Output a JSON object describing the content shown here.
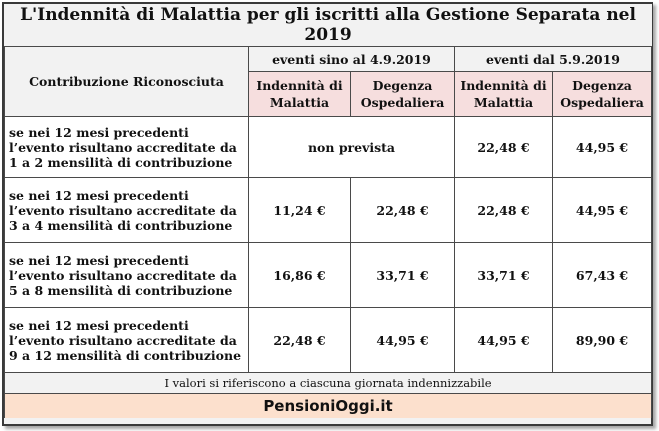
{
  "title": "L'Indennità di Malattia per gli iscritti alla Gestione Separata nel 2019",
  "header": {
    "row_label": "Contribuzione Riconosciuta",
    "period_before": "eventi sino al 4.9.2019",
    "period_after": "eventi dal 5.9.2019",
    "col_malattia": "Indennità di Malattia",
    "col_degenza": "Degenza Ospedaliera"
  },
  "rows": [
    {
      "label": "se nei 12 mesi precedenti l’evento risultano accreditate da  1  a 2 mensilità di contribuzione",
      "before_merged": "non prevista",
      "after_malattia": "22,48 €",
      "after_degenza": "44,95 €"
    },
    {
      "label": "se nei 12 mesi precedenti l’evento risultano accreditate da  3  a 4 mensilità di contribuzione",
      "before_malattia": "11,24 €",
      "before_degenza": "22,48 €",
      "after_malattia": "22,48 €",
      "after_degenza": "44,95 €"
    },
    {
      "label": "se nei 12 mesi precedenti l’evento risultano accreditate da 5  a 8 mensilità di contribuzione",
      "before_malattia": "16,86 €",
      "before_degenza": "33,71 €",
      "after_malattia": "33,71 €",
      "after_degenza": "67,43 €"
    },
    {
      "label": "se nei 12 mesi precedenti l’evento risultano accreditate da 9 a 12 mensilità di contribuzione",
      "before_malattia": "22,48 €",
      "before_degenza": "44,95 €",
      "after_malattia": "44,95 €",
      "after_degenza": "89,90 €"
    }
  ],
  "note": "I valori si riferiscono a ciascuna giornata indennizzabile",
  "brand": "PensioniOggi.it"
}
